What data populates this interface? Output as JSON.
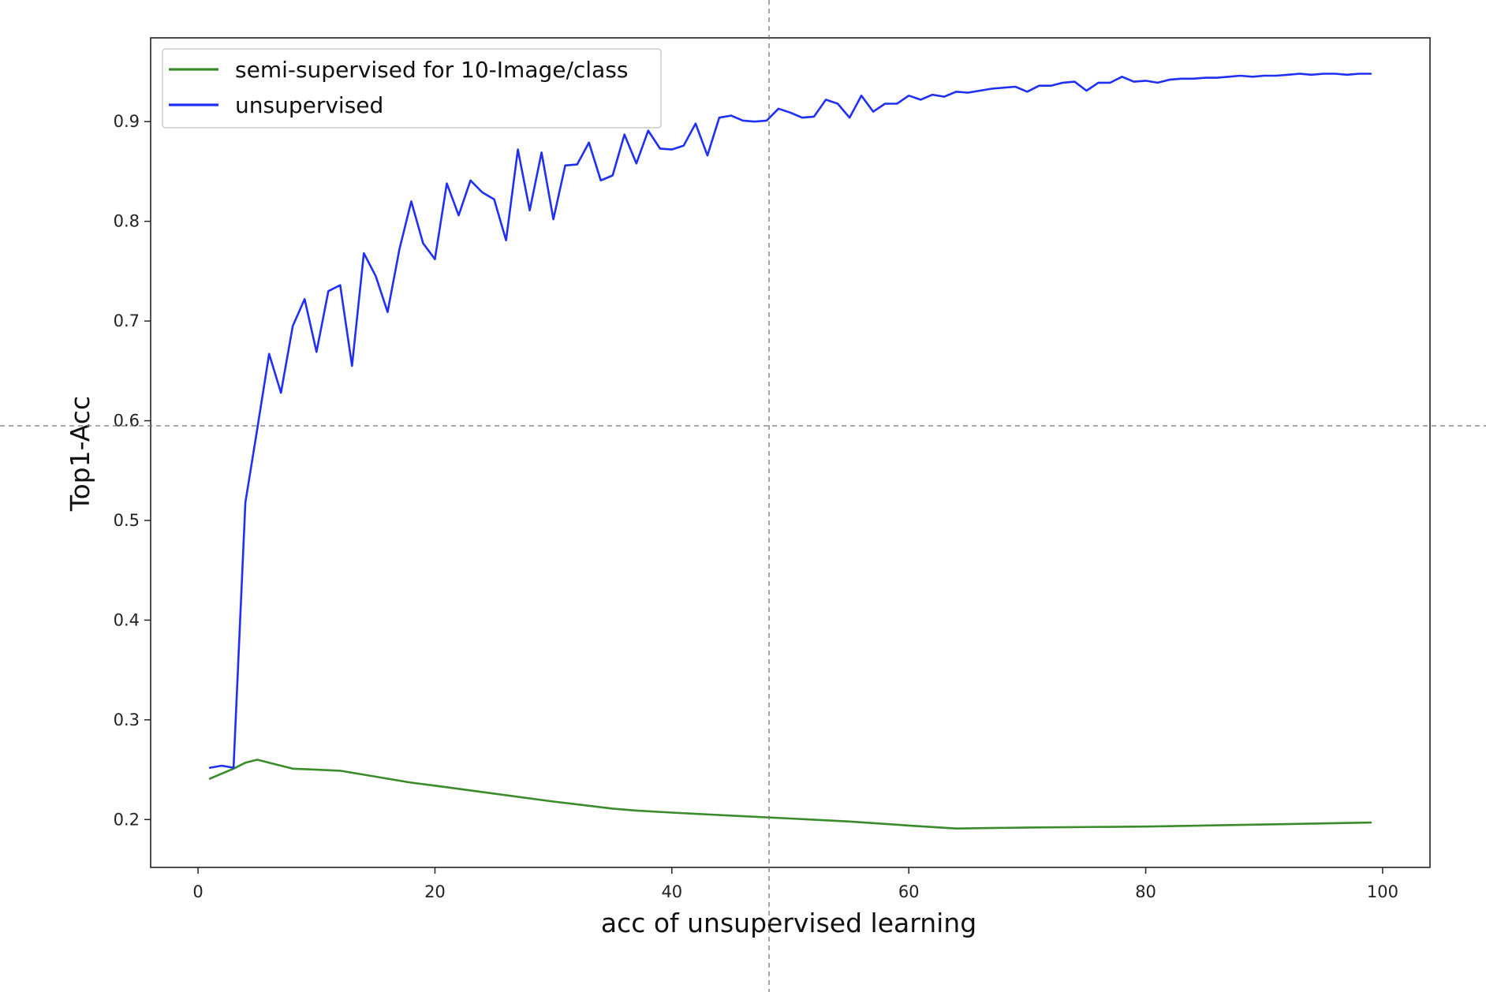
{
  "chart_data": {
    "type": "line",
    "title": "",
    "xlabel": "acc of unsupervised learning",
    "ylabel": "Top1-Acc",
    "xlim": [
      -4,
      104
    ],
    "ylim": [
      0.152,
      0.984
    ],
    "xticks": [
      0,
      20,
      40,
      60,
      80,
      100
    ],
    "yticks": [
      0.2,
      0.3,
      0.4,
      0.5,
      0.6,
      0.7,
      0.8,
      0.9
    ],
    "xtick_labels": [
      "0",
      "20",
      "40",
      "60",
      "80",
      "100"
    ],
    "ytick_labels": [
      "0.2",
      "0.3",
      "0.4",
      "0.5",
      "0.6",
      "0.7",
      "0.8",
      "0.9"
    ],
    "grid": false,
    "legend_position": "top-left",
    "series": [
      {
        "name": "semi-supervised for 10-Image/class",
        "color": "#3a8b2a",
        "x": [
          1,
          2,
          3,
          4,
          5,
          6,
          7,
          8,
          10,
          12,
          14,
          16,
          18,
          20,
          25,
          30,
          35,
          37,
          40,
          45,
          50,
          55,
          60,
          64,
          70,
          80,
          90,
          99
        ],
        "y": [
          0.241,
          0.246,
          0.251,
          0.257,
          0.26,
          0.257,
          0.254,
          0.251,
          0.25,
          0.249,
          0.245,
          0.241,
          0.237,
          0.234,
          0.226,
          0.218,
          0.211,
          0.209,
          0.207,
          0.204,
          0.201,
          0.198,
          0.194,
          0.191,
          0.192,
          0.193,
          0.195,
          0.197
        ]
      },
      {
        "name": "unsupervised",
        "color": "#1f2ff5",
        "x": [
          1,
          2,
          3,
          4,
          5,
          6,
          7,
          8,
          9,
          10,
          11,
          12,
          13,
          14,
          15,
          16,
          17,
          18,
          19,
          20,
          21,
          22,
          23,
          24,
          25,
          26,
          27,
          28,
          29,
          30,
          31,
          32,
          33,
          34,
          35,
          36,
          37,
          38,
          39,
          40,
          41,
          42,
          43,
          44,
          45,
          46,
          47,
          48,
          49,
          50,
          51,
          52,
          53,
          54,
          55,
          56,
          57,
          58,
          59,
          60,
          61,
          62,
          63,
          64,
          65,
          66,
          67,
          68,
          69,
          70,
          71,
          72,
          73,
          74,
          75,
          76,
          77,
          78,
          79,
          80,
          81,
          82,
          83,
          84,
          85,
          86,
          87,
          88,
          89,
          90,
          91,
          92,
          93,
          94,
          95,
          96,
          97,
          98,
          99
        ],
        "y": [
          0.252,
          0.254,
          0.252,
          0.518,
          0.592,
          0.667,
          0.628,
          0.695,
          0.722,
          0.669,
          0.73,
          0.736,
          0.655,
          0.768,
          0.745,
          0.709,
          0.772,
          0.82,
          0.778,
          0.762,
          0.838,
          0.806,
          0.841,
          0.829,
          0.822,
          0.781,
          0.872,
          0.811,
          0.869,
          0.802,
          0.856,
          0.857,
          0.879,
          0.841,
          0.846,
          0.887,
          0.858,
          0.891,
          0.873,
          0.872,
          0.876,
          0.898,
          0.866,
          0.904,
          0.906,
          0.901,
          0.9,
          0.901,
          0.913,
          0.909,
          0.904,
          0.905,
          0.922,
          0.918,
          0.904,
          0.926,
          0.91,
          0.918,
          0.918,
          0.926,
          0.922,
          0.927,
          0.925,
          0.93,
          0.929,
          0.931,
          0.933,
          0.934,
          0.935,
          0.93,
          0.936,
          0.936,
          0.939,
          0.94,
          0.931,
          0.939,
          0.939,
          0.945,
          0.94,
          0.941,
          0.939,
          0.942,
          0.943,
          0.943,
          0.944,
          0.944,
          0.945,
          0.946,
          0.945,
          0.946,
          0.946,
          0.947,
          0.948,
          0.947,
          0.948,
          0.948,
          0.947,
          0.948,
          0.948
        ]
      }
    ]
  }
}
